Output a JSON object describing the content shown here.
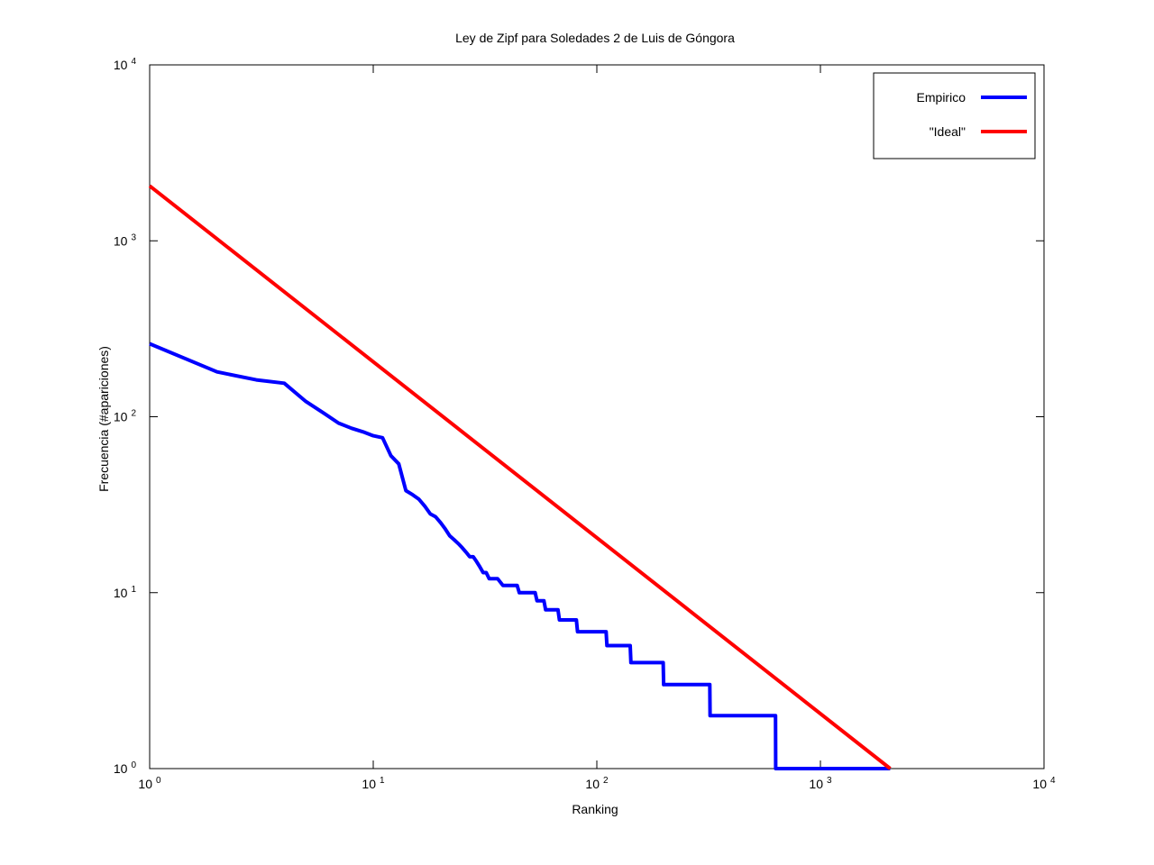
{
  "chart_data": {
    "type": "line",
    "title": "Ley de Zipf para Soledades 2 de Luis de Góngora",
    "xlabel": "Ranking",
    "ylabel": "Frecuencia (#apariciones)",
    "xscale": "log",
    "yscale": "log",
    "xlim": [
      1,
      10000
    ],
    "ylim": [
      1,
      10000
    ],
    "grid": false,
    "legend_position": "top-right",
    "x_ticks": [
      {
        "base": "10",
        "exp": "0",
        "value": 1
      },
      {
        "base": "10",
        "exp": "1",
        "value": 10
      },
      {
        "base": "10",
        "exp": "2",
        "value": 100
      },
      {
        "base": "10",
        "exp": "3",
        "value": 1000
      },
      {
        "base": "10",
        "exp": "4",
        "value": 10000
      }
    ],
    "y_ticks": [
      {
        "base": "10",
        "exp": "0",
        "value": 1
      },
      {
        "base": "10",
        "exp": "1",
        "value": 10
      },
      {
        "base": "10",
        "exp": "2",
        "value": 100
      },
      {
        "base": "10",
        "exp": "3",
        "value": 1000
      },
      {
        "base": "10",
        "exp": "4",
        "value": 10000
      }
    ],
    "series": [
      {
        "name": "Empirico",
        "color": "#0000ff",
        "x": [
          1,
          2,
          3,
          4,
          5,
          6,
          7,
          8,
          9,
          10,
          11,
          12,
          13,
          14,
          15,
          16,
          17,
          18,
          19,
          20,
          21,
          22,
          23,
          24,
          25,
          26,
          27,
          28,
          29,
          30,
          31,
          32,
          33,
          34,
          36,
          38,
          44,
          45,
          53,
          54,
          58,
          59,
          67,
          68,
          81,
          82,
          110,
          111,
          141,
          142,
          198,
          199,
          320,
          321,
          630,
          631,
          2051
        ],
        "y": [
          260,
          180,
          162,
          155,
          122,
          105,
          92,
          86,
          82,
          78,
          76,
          60,
          54,
          38,
          36,
          34,
          31,
          28,
          27,
          25,
          23,
          21,
          20,
          19,
          18,
          17,
          16,
          16,
          15,
          14,
          13,
          13,
          12,
          12,
          12,
          11,
          11,
          10,
          10,
          9,
          9,
          8,
          8,
          7,
          7,
          6,
          6,
          5,
          5,
          4,
          4,
          3,
          3,
          2,
          2,
          1,
          1
        ]
      },
      {
        "name": "\"Ideal\"",
        "color": "#ff0000",
        "x": [
          1,
          2051
        ],
        "y": [
          2051,
          1
        ]
      }
    ]
  }
}
